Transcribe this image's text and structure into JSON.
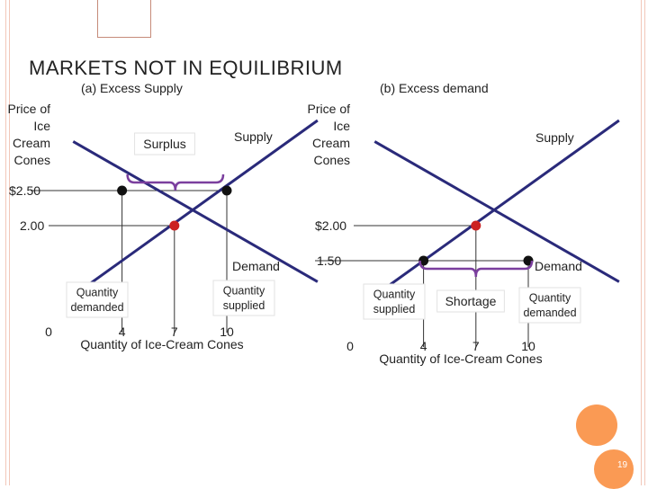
{
  "slide": {
    "title": "MARKETS NOT IN EQUILIBRIUM",
    "page_number": "19",
    "colors": {
      "curve": "#2a2a7a",
      "equilibrium": "#cc2222",
      "point": "#111111",
      "brace": "#7b3f9e",
      "accent": "#fa9a54"
    }
  },
  "chart_data": [
    {
      "type": "line",
      "title": "(a) Excess Supply",
      "xlabel": "Quantity of Ice-Cream Cones",
      "ylabel": "Price of Ice Cream Cones",
      "ylabel_lines": [
        "Price of",
        "Ice",
        "Cream",
        "Cones"
      ],
      "x_ticks": [
        {
          "value": 0,
          "label": "0"
        },
        {
          "value": 4,
          "label": "4"
        },
        {
          "value": 7,
          "label": "7"
        },
        {
          "value": 10,
          "label": "10"
        }
      ],
      "y_ticks": [
        {
          "value": 2.5,
          "label": "$2.50"
        },
        {
          "value": 2.0,
          "label": "2.00"
        }
      ],
      "series": [
        {
          "name": "Supply",
          "x": [
            1.2,
            15.2
          ],
          "y": [
            1.0,
            3.5
          ]
        },
        {
          "name": "Demand",
          "x": [
            1.2,
            15.2
          ],
          "y": [
            3.2,
            1.2
          ]
        }
      ],
      "equilibrium": {
        "x": 7,
        "y": 2.0
      },
      "points": [
        {
          "x": 4,
          "y": 2.5
        },
        {
          "x": 10,
          "y": 2.5
        }
      ],
      "annotations": {
        "gap_label": "Surplus",
        "quantity_demanded": "Quantity demanded",
        "quantity_supplied": "Quantity supplied"
      }
    },
    {
      "type": "line",
      "title": "(b) Excess demand",
      "xlabel": "Quantity of Ice-Cream Cones",
      "ylabel": "Price of Ice Cream Cones",
      "ylabel_lines": [
        "Price of",
        "Ice",
        "Cream",
        "Cones"
      ],
      "x_ticks": [
        {
          "value": 0,
          "label": "0"
        },
        {
          "value": 4,
          "label": "4"
        },
        {
          "value": 7,
          "label": "7"
        },
        {
          "value": 10,
          "label": "10"
        }
      ],
      "y_ticks": [
        {
          "value": 2.0,
          "label": "$2.00"
        },
        {
          "value": 1.5,
          "label": "1.50"
        }
      ],
      "series": [
        {
          "name": "Supply",
          "x": [
            1.2,
            15.2
          ],
          "y": [
            1.0,
            3.5
          ]
        },
        {
          "name": "Demand",
          "x": [
            1.2,
            15.2
          ],
          "y": [
            3.2,
            1.2
          ]
        }
      ],
      "equilibrium": {
        "x": 7,
        "y": 2.0
      },
      "points": [
        {
          "x": 4,
          "y": 1.5
        },
        {
          "x": 10,
          "y": 1.5
        }
      ],
      "annotations": {
        "gap_label": "Shortage",
        "quantity_supplied": "Quantity supplied",
        "quantity_demanded": "Quantity demanded"
      }
    }
  ]
}
